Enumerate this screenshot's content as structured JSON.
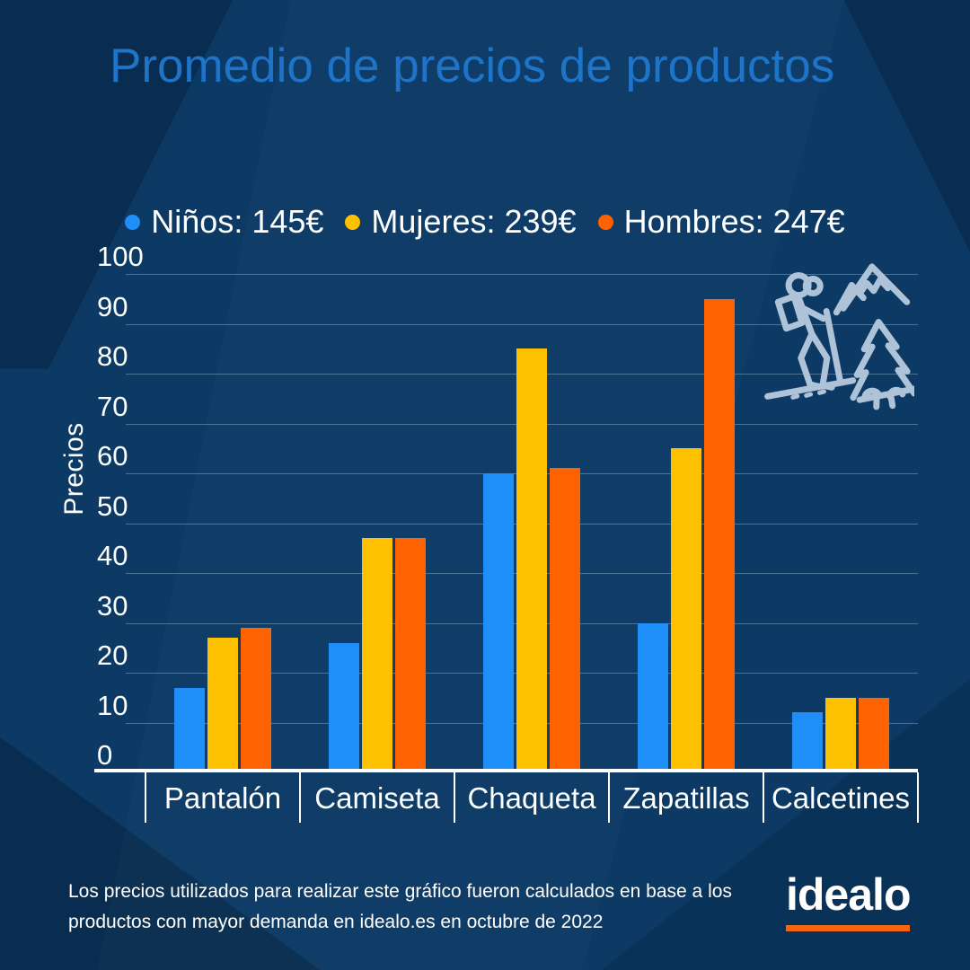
{
  "title": "Promedio de precios de productos",
  "chart_data": {
    "type": "bar",
    "categories": [
      "Pantalón",
      "Camiseta",
      "Chaqueta",
      "Zapatillas",
      "Calcetines"
    ],
    "series": [
      {
        "name": "Niños",
        "legend_label": "Niños: 145€",
        "total": "145€",
        "color": "#1E8FF8",
        "values": [
          17,
          26,
          60,
          30,
          12
        ]
      },
      {
        "name": "Mujeres",
        "legend_label": "Mujeres: 239€",
        "total": "239€",
        "color": "#FDC101",
        "values": [
          27,
          47,
          85,
          65,
          15
        ]
      },
      {
        "name": "Hombres",
        "legend_label": "Hombres: 247€",
        "total": "247€",
        "color": "#FF6200",
        "values": [
          29,
          47,
          61,
          95,
          15
        ]
      }
    ],
    "xlabel": "",
    "ylabel": "Precios",
    "ylim": [
      0,
      100
    ],
    "ytick_step": 10,
    "grid": true,
    "legend_position": "top"
  },
  "icons": {
    "decoration": "hiker-mountains-tree-icon"
  },
  "footer": {
    "note_line1": "Los precios utilizados para realizar este gráfico fueron calculados en base a los",
    "note_line2": "productos con mayor demanda en idealo.es en octubre de 2022",
    "brand": "idealo"
  },
  "colors": {
    "background": "#0C3A64",
    "title": "#1E74C9",
    "axis": "#FFFFFF",
    "gridline": "rgba(214,231,245,0.32)",
    "icon_stroke": "#AEC3D8",
    "brand_orange": "#F8650C",
    "bar_blue": "#1E8FF8",
    "bar_yellow": "#FDC101",
    "bar_orange": "#FF6200"
  }
}
